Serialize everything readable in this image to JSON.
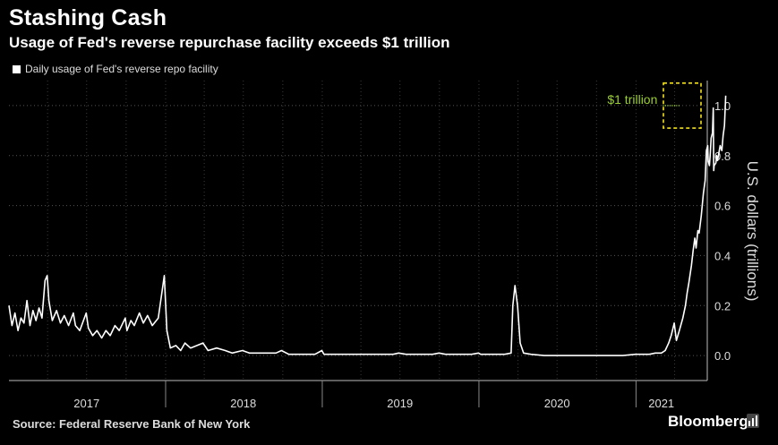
{
  "header": {
    "title": "Stashing Cash",
    "subtitle": "Usage of Fed's reverse repurchase facility exceeds $1 trillion"
  },
  "legend": {
    "label": "Daily usage of Fed's reverse repo facility"
  },
  "footer": {
    "source": "Source: Federal Reserve Bank of New York",
    "brand": "Bloomberg"
  },
  "colors": {
    "background": "#000000",
    "line": "#ffffff",
    "annotation": "#9acd32",
    "highlight": "#f2e01a",
    "grid": "#555555"
  },
  "chart_data": {
    "type": "line",
    "title": "Stashing Cash",
    "subtitle": "Usage of Fed's reverse repurchase facility exceeds $1 trillion",
    "ylabel": "U.S. dollars (trillions)",
    "xlabel": "",
    "ylim": [
      -0.1,
      1.1
    ],
    "yticks": [
      "0.0",
      "0.2",
      "0.4",
      "0.6",
      "0.8",
      "1.0"
    ],
    "ytick_values": [
      0.0,
      0.2,
      0.4,
      0.6,
      0.8,
      1.0
    ],
    "xlim": [
      "2017-01-01",
      "2021-06-16"
    ],
    "year_labels": [
      "2017",
      "2018",
      "2019",
      "2020",
      "2021"
    ],
    "year_label_positions": [
      "2017-07-01",
      "2018-07-01",
      "2019-07-01",
      "2020-07-01",
      "2021-03-01"
    ],
    "year_boundaries": [
      "2018-01-01",
      "2019-01-01",
      "2020-01-01",
      "2021-01-01"
    ],
    "grid": true,
    "legend_position": "top-left",
    "annotation": {
      "text": "$1 trillion",
      "value": 1.0,
      "x_from": "2021-02-20"
    },
    "highlight_box": {
      "x": [
        "2021-05-15",
        "2021-06-15"
      ],
      "y": [
        0.91,
        1.09
      ]
    },
    "series": [
      {
        "name": "Daily usage of Fed's reverse repo facility",
        "points": [
          [
            "2017-01-01",
            0.2
          ],
          [
            "2017-01-08",
            0.12
          ],
          [
            "2017-01-15",
            0.17
          ],
          [
            "2017-01-22",
            0.1
          ],
          [
            "2017-01-29",
            0.15
          ],
          [
            "2017-02-05",
            0.13
          ],
          [
            "2017-02-12",
            0.22
          ],
          [
            "2017-02-19",
            0.12
          ],
          [
            "2017-02-26",
            0.18
          ],
          [
            "2017-03-05",
            0.14
          ],
          [
            "2017-03-12",
            0.19
          ],
          [
            "2017-03-19",
            0.15
          ],
          [
            "2017-03-26",
            0.3
          ],
          [
            "2017-03-31",
            0.32
          ],
          [
            "2017-04-04",
            0.22
          ],
          [
            "2017-04-12",
            0.14
          ],
          [
            "2017-04-22",
            0.18
          ],
          [
            "2017-05-01",
            0.13
          ],
          [
            "2017-05-10",
            0.16
          ],
          [
            "2017-05-20",
            0.12
          ],
          [
            "2017-05-31",
            0.17
          ],
          [
            "2017-06-05",
            0.12
          ],
          [
            "2017-06-15",
            0.1
          ],
          [
            "2017-06-30",
            0.17
          ],
          [
            "2017-07-05",
            0.11
          ],
          [
            "2017-07-15",
            0.08
          ],
          [
            "2017-07-25",
            0.1
          ],
          [
            "2017-08-05",
            0.07
          ],
          [
            "2017-08-15",
            0.1
          ],
          [
            "2017-08-25",
            0.08
          ],
          [
            "2017-09-05",
            0.12
          ],
          [
            "2017-09-15",
            0.1
          ],
          [
            "2017-09-29",
            0.15
          ],
          [
            "2017-10-03",
            0.1
          ],
          [
            "2017-10-12",
            0.14
          ],
          [
            "2017-10-20",
            0.12
          ],
          [
            "2017-11-01",
            0.17
          ],
          [
            "2017-11-10",
            0.13
          ],
          [
            "2017-11-20",
            0.16
          ],
          [
            "2017-12-01",
            0.12
          ],
          [
            "2017-12-15",
            0.15
          ],
          [
            "2017-12-29",
            0.32
          ],
          [
            "2018-01-04",
            0.1
          ],
          [
            "2018-01-12",
            0.03
          ],
          [
            "2018-01-25",
            0.04
          ],
          [
            "2018-02-05",
            0.02
          ],
          [
            "2018-02-15",
            0.05
          ],
          [
            "2018-02-28",
            0.03
          ],
          [
            "2018-03-15",
            0.04
          ],
          [
            "2018-03-29",
            0.05
          ],
          [
            "2018-04-10",
            0.02
          ],
          [
            "2018-04-30",
            0.03
          ],
          [
            "2018-05-20",
            0.02
          ],
          [
            "2018-06-05",
            0.01
          ],
          [
            "2018-06-29",
            0.02
          ],
          [
            "2018-07-15",
            0.01
          ],
          [
            "2018-08-15",
            0.01
          ],
          [
            "2018-09-15",
            0.01
          ],
          [
            "2018-09-28",
            0.02
          ],
          [
            "2018-10-15",
            0.005
          ],
          [
            "2018-11-15",
            0.005
          ],
          [
            "2018-12-15",
            0.005
          ],
          [
            "2018-12-31",
            0.02
          ],
          [
            "2019-01-05",
            0.005
          ],
          [
            "2019-02-15",
            0.005
          ],
          [
            "2019-03-15",
            0.005
          ],
          [
            "2019-04-15",
            0.005
          ],
          [
            "2019-05-15",
            0.005
          ],
          [
            "2019-06-15",
            0.005
          ],
          [
            "2019-06-28",
            0.01
          ],
          [
            "2019-07-15",
            0.005
          ],
          [
            "2019-08-15",
            0.005
          ],
          [
            "2019-09-15",
            0.005
          ],
          [
            "2019-09-30",
            0.01
          ],
          [
            "2019-10-15",
            0.005
          ],
          [
            "2019-11-15",
            0.005
          ],
          [
            "2019-12-15",
            0.005
          ],
          [
            "2019-12-31",
            0.01
          ],
          [
            "2020-01-05",
            0.005
          ],
          [
            "2020-02-01",
            0.005
          ],
          [
            "2020-03-01",
            0.005
          ],
          [
            "2020-03-16",
            0.01
          ],
          [
            "2020-03-20",
            0.2
          ],
          [
            "2020-03-25",
            0.28
          ],
          [
            "2020-03-31",
            0.2
          ],
          [
            "2020-04-06",
            0.05
          ],
          [
            "2020-04-14",
            0.01
          ],
          [
            "2020-05-01",
            0.005
          ],
          [
            "2020-06-01",
            0.0
          ],
          [
            "2020-07-01",
            0.0
          ],
          [
            "2020-08-01",
            0.0
          ],
          [
            "2020-09-01",
            0.0
          ],
          [
            "2020-10-01",
            0.0
          ],
          [
            "2020-11-01",
            0.0
          ],
          [
            "2020-12-01",
            0.0
          ],
          [
            "2020-12-31",
            0.005
          ],
          [
            "2021-01-15",
            0.005
          ],
          [
            "2021-02-01",
            0.005
          ],
          [
            "2021-02-15",
            0.01
          ],
          [
            "2021-03-01",
            0.01
          ],
          [
            "2021-03-10",
            0.02
          ],
          [
            "2021-03-18",
            0.05
          ],
          [
            "2021-03-24",
            0.08
          ],
          [
            "2021-03-31",
            0.13
          ],
          [
            "2021-04-05",
            0.06
          ],
          [
            "2021-04-12",
            0.1
          ],
          [
            "2021-04-20",
            0.15
          ],
          [
            "2021-04-26",
            0.2
          ],
          [
            "2021-04-30",
            0.25
          ],
          [
            "2021-05-04",
            0.29
          ],
          [
            "2021-05-10",
            0.36
          ],
          [
            "2021-05-14",
            0.42
          ],
          [
            "2021-05-18",
            0.47
          ],
          [
            "2021-05-21",
            0.43
          ],
          [
            "2021-05-25",
            0.5
          ],
          [
            "2021-05-28",
            0.49
          ],
          [
            "2021-06-02",
            0.56
          ],
          [
            "2021-06-07",
            0.65
          ],
          [
            "2021-06-11",
            0.7
          ],
          [
            "2021-06-14",
            0.82
          ],
          [
            "2021-06-17",
            0.84
          ],
          [
            "2021-06-18",
            0.78
          ],
          [
            "2021-06-21",
            0.76
          ],
          [
            "2021-06-23",
            0.81
          ],
          [
            "2021-06-25",
            0.87
          ],
          [
            "2021-06-28",
            0.89
          ],
          [
            "2021-06-30",
            0.99
          ],
          [
            "2021-07-01",
            0.74
          ],
          [
            "2021-07-02",
            0.76
          ],
          [
            "2021-07-06",
            0.77
          ],
          [
            "2021-07-08",
            0.8
          ],
          [
            "2021-07-10",
            0.78
          ],
          [
            "2021-07-14",
            0.82
          ],
          [
            "2021-07-16",
            0.84
          ],
          [
            "2021-07-20",
            0.82
          ],
          [
            "2021-07-23",
            0.88
          ],
          [
            "2021-07-26",
            0.92
          ],
          [
            "2021-07-29",
            1.04
          ]
        ]
      }
    ]
  }
}
